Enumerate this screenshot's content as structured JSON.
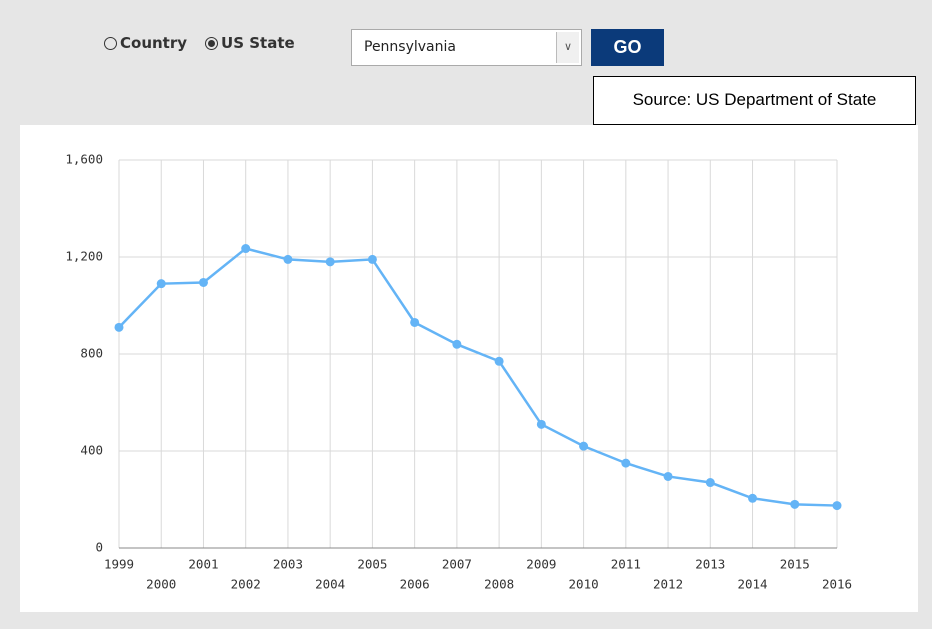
{
  "radios": [
    {
      "label": "Country",
      "checked": false
    },
    {
      "label": "US State",
      "checked": true
    }
  ],
  "select": "Pennsylvania",
  "button": "GO",
  "source": "Source: US Department of State",
  "chart_data": {
    "type": "line",
    "categories": [
      "1999",
      "2000",
      "2001",
      "2002",
      "2003",
      "2004",
      "2005",
      "2006",
      "2007",
      "2008",
      "2009",
      "2010",
      "2011",
      "2012",
      "2013",
      "2014",
      "2015",
      "2016"
    ],
    "values": [
      910,
      1090,
      1095,
      1235,
      1190,
      1180,
      1190,
      930,
      840,
      770,
      510,
      420,
      350,
      295,
      270,
      205,
      180,
      175
    ],
    "color": "#64b4f6",
    "ylim": [
      0,
      1600
    ],
    "yticks": [
      0,
      400,
      800,
      {
        "value": 1200,
        "label": "1,200"
      },
      {
        "value": 1600,
        "label": "1,600"
      }
    ],
    "grid": true
  }
}
